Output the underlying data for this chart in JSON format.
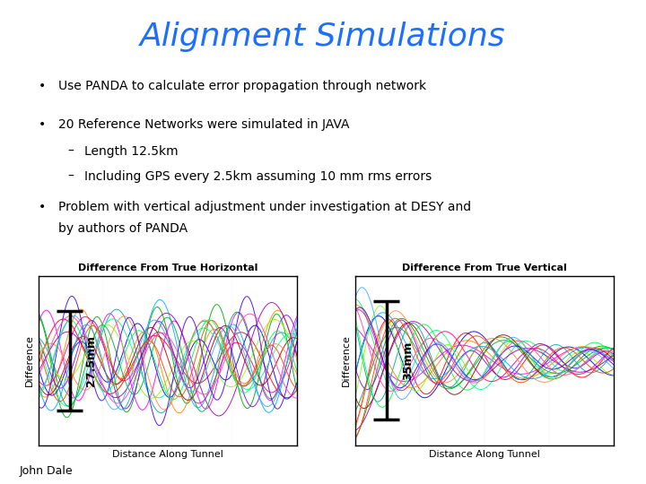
{
  "title": "Alignment Simulations",
  "title_color": "#1E6FFF",
  "title_fontsize": 26,
  "background_color": "#FFFFFF",
  "bullet1": "Use PANDA to calculate error propagation through network",
  "bullet2": "20 Reference Networks were simulated in JAVA",
  "sub1": "Length 12.5km",
  "sub2": "Including GPS every 2.5km assuming 10 mm rms errors",
  "bullet3_line1": "Problem with vertical adjustment under investigation at DESY and",
  "bullet3_line2": "by authors of PANDA",
  "text_fontsize": 10,
  "footer": "John Dale",
  "plot1_title": "Difference From True Horizontal",
  "plot1_ylabel": "Difference",
  "plot1_xlabel": "Distance Along Tunnel",
  "plot1_annotation": "27.5mm",
  "plot2_title": "Difference From True Vertical",
  "plot2_ylabel": "Difference",
  "plot2_xlabel": "Distance Along Tunnel",
  "plot2_annotation": "35mm",
  "n_curves": 20,
  "n_points": 300,
  "colors_pool": [
    "#FF0000",
    "#00AA00",
    "#0000FF",
    "#FF00FF",
    "#00AAAA",
    "#FF8800",
    "#8800FF",
    "#00FF88",
    "#FF0088",
    "#88FF00",
    "#AA0000",
    "#00AAFF",
    "#FF8844",
    "#AA00AA",
    "#00AA44",
    "#4400FF",
    "#FF4400",
    "#00FF44",
    "#FF44AA",
    "#44AAFF"
  ]
}
